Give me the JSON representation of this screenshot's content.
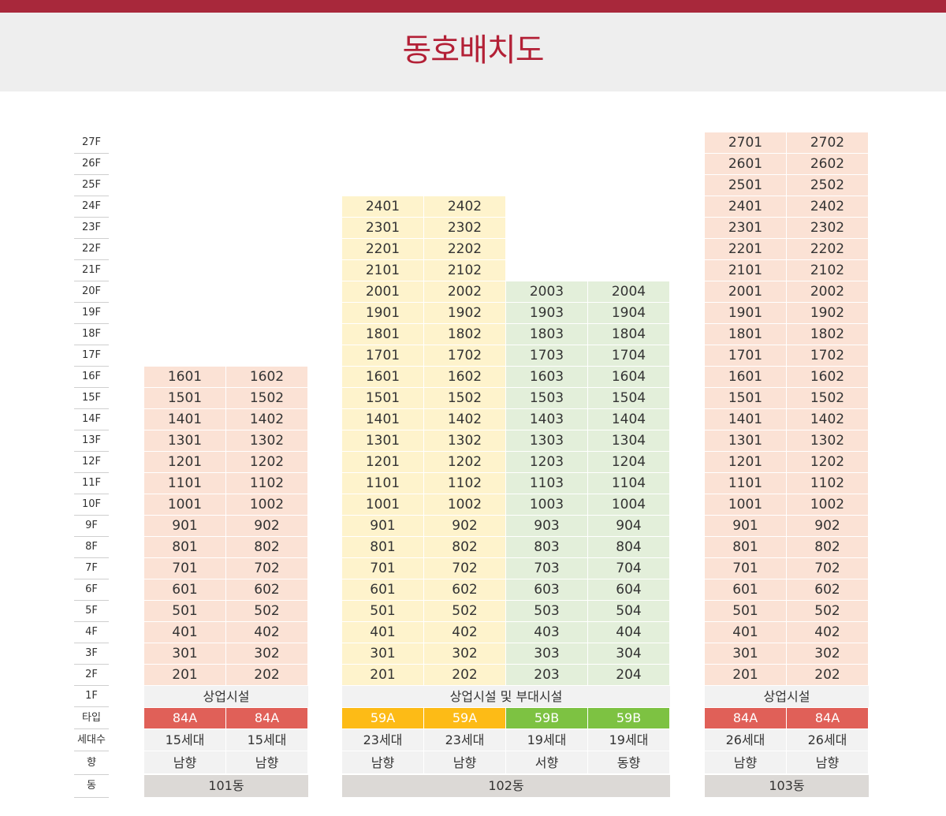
{
  "title": "동호배치도",
  "colors": {
    "accent": "#a8283b",
    "title": "#b32036",
    "type_84A": "#e06058",
    "type_59A": "#fdbb16",
    "type_59B": "#7dc242"
  },
  "floor_labels": [
    "27F",
    "26F",
    "25F",
    "24F",
    "23F",
    "22F",
    "21F",
    "20F",
    "19F",
    "18F",
    "17F",
    "16F",
    "15F",
    "14F",
    "13F",
    "12F",
    "11F",
    "10F",
    "9F",
    "8F",
    "7F",
    "6F",
    "5F",
    "4F",
    "3F",
    "2F",
    "1F"
  ],
  "row_labels": {
    "type": "타입",
    "households": "세대수",
    "direction": "향",
    "building": "동"
  },
  "buildings": [
    {
      "name": "101동",
      "top_floor": 16,
      "ground": "상업시설",
      "lines": [
        {
          "suffix": "01",
          "type": "84A",
          "households": "15세대",
          "direction": "남향"
        },
        {
          "suffix": "02",
          "type": "84A",
          "households": "15세대",
          "direction": "남향"
        }
      ]
    },
    {
      "name": "102동",
      "ground": "상업시설 및 부대시설",
      "lines": [
        {
          "suffix": "01",
          "top_floor": 24,
          "type": "59A",
          "households": "23세대",
          "direction": "남향"
        },
        {
          "suffix": "02",
          "top_floor": 24,
          "type": "59A",
          "households": "23세대",
          "direction": "남향"
        },
        {
          "suffix": "03",
          "top_floor": 20,
          "type": "59B",
          "households": "19세대",
          "direction": "서향"
        },
        {
          "suffix": "04",
          "top_floor": 20,
          "type": "59B",
          "households": "19세대",
          "direction": "동향"
        }
      ]
    },
    {
      "name": "103동",
      "top_floor": 27,
      "ground": "상업시설",
      "lines": [
        {
          "suffix": "01",
          "type": "84A",
          "households": "26세대",
          "direction": "남향"
        },
        {
          "suffix": "02",
          "type": "84A",
          "households": "26세대",
          "direction": "남향"
        }
      ]
    }
  ]
}
